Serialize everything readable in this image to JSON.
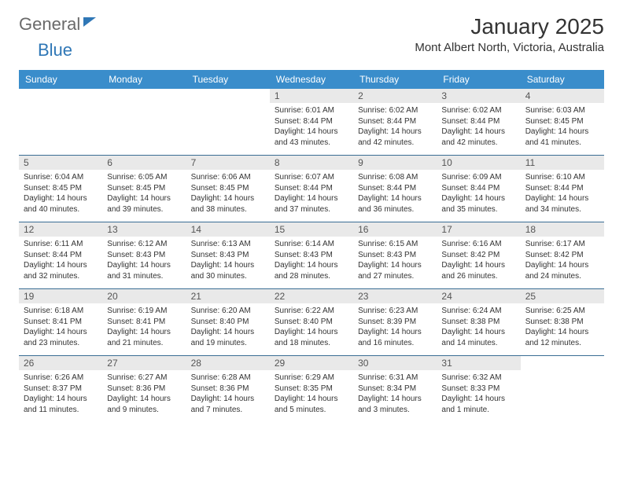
{
  "logo": {
    "text1": "General",
    "text2": "Blue"
  },
  "title": {
    "month": "January 2025",
    "location": "Mont Albert North, Victoria, Australia"
  },
  "colors": {
    "header_bg": "#3a8dcb",
    "daynum_bg": "#e9e9e9",
    "border": "#3a6d94"
  },
  "weekdays": [
    "Sunday",
    "Monday",
    "Tuesday",
    "Wednesday",
    "Thursday",
    "Friday",
    "Saturday"
  ],
  "weeks": [
    [
      {
        "day": "",
        "sunrise": "",
        "sunset": "",
        "daylight": ""
      },
      {
        "day": "",
        "sunrise": "",
        "sunset": "",
        "daylight": ""
      },
      {
        "day": "",
        "sunrise": "",
        "sunset": "",
        "daylight": ""
      },
      {
        "day": "1",
        "sunrise": "Sunrise: 6:01 AM",
        "sunset": "Sunset: 8:44 PM",
        "daylight": "Daylight: 14 hours and 43 minutes."
      },
      {
        "day": "2",
        "sunrise": "Sunrise: 6:02 AM",
        "sunset": "Sunset: 8:44 PM",
        "daylight": "Daylight: 14 hours and 42 minutes."
      },
      {
        "day": "3",
        "sunrise": "Sunrise: 6:02 AM",
        "sunset": "Sunset: 8:44 PM",
        "daylight": "Daylight: 14 hours and 42 minutes."
      },
      {
        "day": "4",
        "sunrise": "Sunrise: 6:03 AM",
        "sunset": "Sunset: 8:45 PM",
        "daylight": "Daylight: 14 hours and 41 minutes."
      }
    ],
    [
      {
        "day": "5",
        "sunrise": "Sunrise: 6:04 AM",
        "sunset": "Sunset: 8:45 PM",
        "daylight": "Daylight: 14 hours and 40 minutes."
      },
      {
        "day": "6",
        "sunrise": "Sunrise: 6:05 AM",
        "sunset": "Sunset: 8:45 PM",
        "daylight": "Daylight: 14 hours and 39 minutes."
      },
      {
        "day": "7",
        "sunrise": "Sunrise: 6:06 AM",
        "sunset": "Sunset: 8:45 PM",
        "daylight": "Daylight: 14 hours and 38 minutes."
      },
      {
        "day": "8",
        "sunrise": "Sunrise: 6:07 AM",
        "sunset": "Sunset: 8:44 PM",
        "daylight": "Daylight: 14 hours and 37 minutes."
      },
      {
        "day": "9",
        "sunrise": "Sunrise: 6:08 AM",
        "sunset": "Sunset: 8:44 PM",
        "daylight": "Daylight: 14 hours and 36 minutes."
      },
      {
        "day": "10",
        "sunrise": "Sunrise: 6:09 AM",
        "sunset": "Sunset: 8:44 PM",
        "daylight": "Daylight: 14 hours and 35 minutes."
      },
      {
        "day": "11",
        "sunrise": "Sunrise: 6:10 AM",
        "sunset": "Sunset: 8:44 PM",
        "daylight": "Daylight: 14 hours and 34 minutes."
      }
    ],
    [
      {
        "day": "12",
        "sunrise": "Sunrise: 6:11 AM",
        "sunset": "Sunset: 8:44 PM",
        "daylight": "Daylight: 14 hours and 32 minutes."
      },
      {
        "day": "13",
        "sunrise": "Sunrise: 6:12 AM",
        "sunset": "Sunset: 8:43 PM",
        "daylight": "Daylight: 14 hours and 31 minutes."
      },
      {
        "day": "14",
        "sunrise": "Sunrise: 6:13 AM",
        "sunset": "Sunset: 8:43 PM",
        "daylight": "Daylight: 14 hours and 30 minutes."
      },
      {
        "day": "15",
        "sunrise": "Sunrise: 6:14 AM",
        "sunset": "Sunset: 8:43 PM",
        "daylight": "Daylight: 14 hours and 28 minutes."
      },
      {
        "day": "16",
        "sunrise": "Sunrise: 6:15 AM",
        "sunset": "Sunset: 8:43 PM",
        "daylight": "Daylight: 14 hours and 27 minutes."
      },
      {
        "day": "17",
        "sunrise": "Sunrise: 6:16 AM",
        "sunset": "Sunset: 8:42 PM",
        "daylight": "Daylight: 14 hours and 26 minutes."
      },
      {
        "day": "18",
        "sunrise": "Sunrise: 6:17 AM",
        "sunset": "Sunset: 8:42 PM",
        "daylight": "Daylight: 14 hours and 24 minutes."
      }
    ],
    [
      {
        "day": "19",
        "sunrise": "Sunrise: 6:18 AM",
        "sunset": "Sunset: 8:41 PM",
        "daylight": "Daylight: 14 hours and 23 minutes."
      },
      {
        "day": "20",
        "sunrise": "Sunrise: 6:19 AM",
        "sunset": "Sunset: 8:41 PM",
        "daylight": "Daylight: 14 hours and 21 minutes."
      },
      {
        "day": "21",
        "sunrise": "Sunrise: 6:20 AM",
        "sunset": "Sunset: 8:40 PM",
        "daylight": "Daylight: 14 hours and 19 minutes."
      },
      {
        "day": "22",
        "sunrise": "Sunrise: 6:22 AM",
        "sunset": "Sunset: 8:40 PM",
        "daylight": "Daylight: 14 hours and 18 minutes."
      },
      {
        "day": "23",
        "sunrise": "Sunrise: 6:23 AM",
        "sunset": "Sunset: 8:39 PM",
        "daylight": "Daylight: 14 hours and 16 minutes."
      },
      {
        "day": "24",
        "sunrise": "Sunrise: 6:24 AM",
        "sunset": "Sunset: 8:38 PM",
        "daylight": "Daylight: 14 hours and 14 minutes."
      },
      {
        "day": "25",
        "sunrise": "Sunrise: 6:25 AM",
        "sunset": "Sunset: 8:38 PM",
        "daylight": "Daylight: 14 hours and 12 minutes."
      }
    ],
    [
      {
        "day": "26",
        "sunrise": "Sunrise: 6:26 AM",
        "sunset": "Sunset: 8:37 PM",
        "daylight": "Daylight: 14 hours and 11 minutes."
      },
      {
        "day": "27",
        "sunrise": "Sunrise: 6:27 AM",
        "sunset": "Sunset: 8:36 PM",
        "daylight": "Daylight: 14 hours and 9 minutes."
      },
      {
        "day": "28",
        "sunrise": "Sunrise: 6:28 AM",
        "sunset": "Sunset: 8:36 PM",
        "daylight": "Daylight: 14 hours and 7 minutes."
      },
      {
        "day": "29",
        "sunrise": "Sunrise: 6:29 AM",
        "sunset": "Sunset: 8:35 PM",
        "daylight": "Daylight: 14 hours and 5 minutes."
      },
      {
        "day": "30",
        "sunrise": "Sunrise: 6:31 AM",
        "sunset": "Sunset: 8:34 PM",
        "daylight": "Daylight: 14 hours and 3 minutes."
      },
      {
        "day": "31",
        "sunrise": "Sunrise: 6:32 AM",
        "sunset": "Sunset: 8:33 PM",
        "daylight": "Daylight: 14 hours and 1 minute."
      },
      {
        "day": "",
        "sunrise": "",
        "sunset": "",
        "daylight": ""
      }
    ]
  ]
}
